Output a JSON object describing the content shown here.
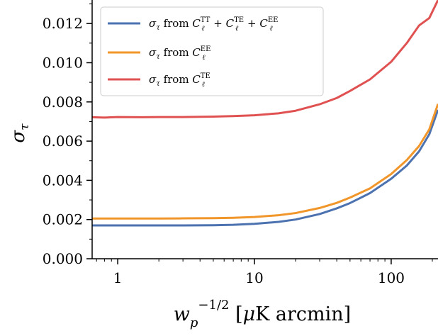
{
  "chart_data": {
    "type": "line",
    "xscale": "log",
    "xlim": [
      0.65,
      220
    ],
    "ylim": [
      0,
      0.0132
    ],
    "grid": false,
    "legend_position": "top-left",
    "xlabel": "w_p^{-1/2} [μK arcmin]",
    "ylabel": "σ_τ",
    "x_ticks": [
      1,
      10,
      100
    ],
    "x_tick_labels": [
      "1",
      "10",
      "100"
    ],
    "y_ticks": [
      0,
      0.002,
      0.004,
      0.006,
      0.008,
      0.01,
      0.012
    ],
    "y_tick_labels": [
      "0.000",
      "0.002",
      "0.004",
      "0.006",
      "0.008",
      "0.010",
      "0.012"
    ],
    "x": [
      0.65,
      0.8,
      1,
      1.5,
      2,
      3,
      5,
      7,
      10,
      15,
      20,
      30,
      40,
      50,
      70,
      100,
      130,
      160,
      190,
      220
    ],
    "series": [
      {
        "name": "σ_τ from C_ℓ^TT + C_ℓ^TE + C_ℓ^EE",
        "color": "#4c72b0",
        "values": [
          0.0017,
          0.0017,
          0.0017,
          0.0017,
          0.0017,
          0.0017,
          0.00171,
          0.00173,
          0.00178,
          0.00188,
          0.002,
          0.00228,
          0.00257,
          0.00284,
          0.00335,
          0.00408,
          0.00475,
          0.00548,
          0.00635,
          0.0076
        ]
      },
      {
        "name": "σ_τ from C_ℓ^EE",
        "color": "#f0962a",
        "values": [
          0.00205,
          0.00205,
          0.00205,
          0.00205,
          0.00205,
          0.00206,
          0.00207,
          0.00209,
          0.00213,
          0.00222,
          0.00233,
          0.00259,
          0.00285,
          0.00312,
          0.00359,
          0.00432,
          0.00503,
          0.00575,
          0.0066,
          0.0079
        ]
      },
      {
        "name": "σ_τ from C_ℓ^TE",
        "color": "#e05252",
        "values": [
          0.00722,
          0.0072,
          0.00723,
          0.00722,
          0.00723,
          0.00723,
          0.00725,
          0.00728,
          0.00732,
          0.00742,
          0.00755,
          0.00788,
          0.0082,
          0.00856,
          0.00915,
          0.01005,
          0.011,
          0.0119,
          0.01228,
          0.0132
        ]
      }
    ]
  }
}
